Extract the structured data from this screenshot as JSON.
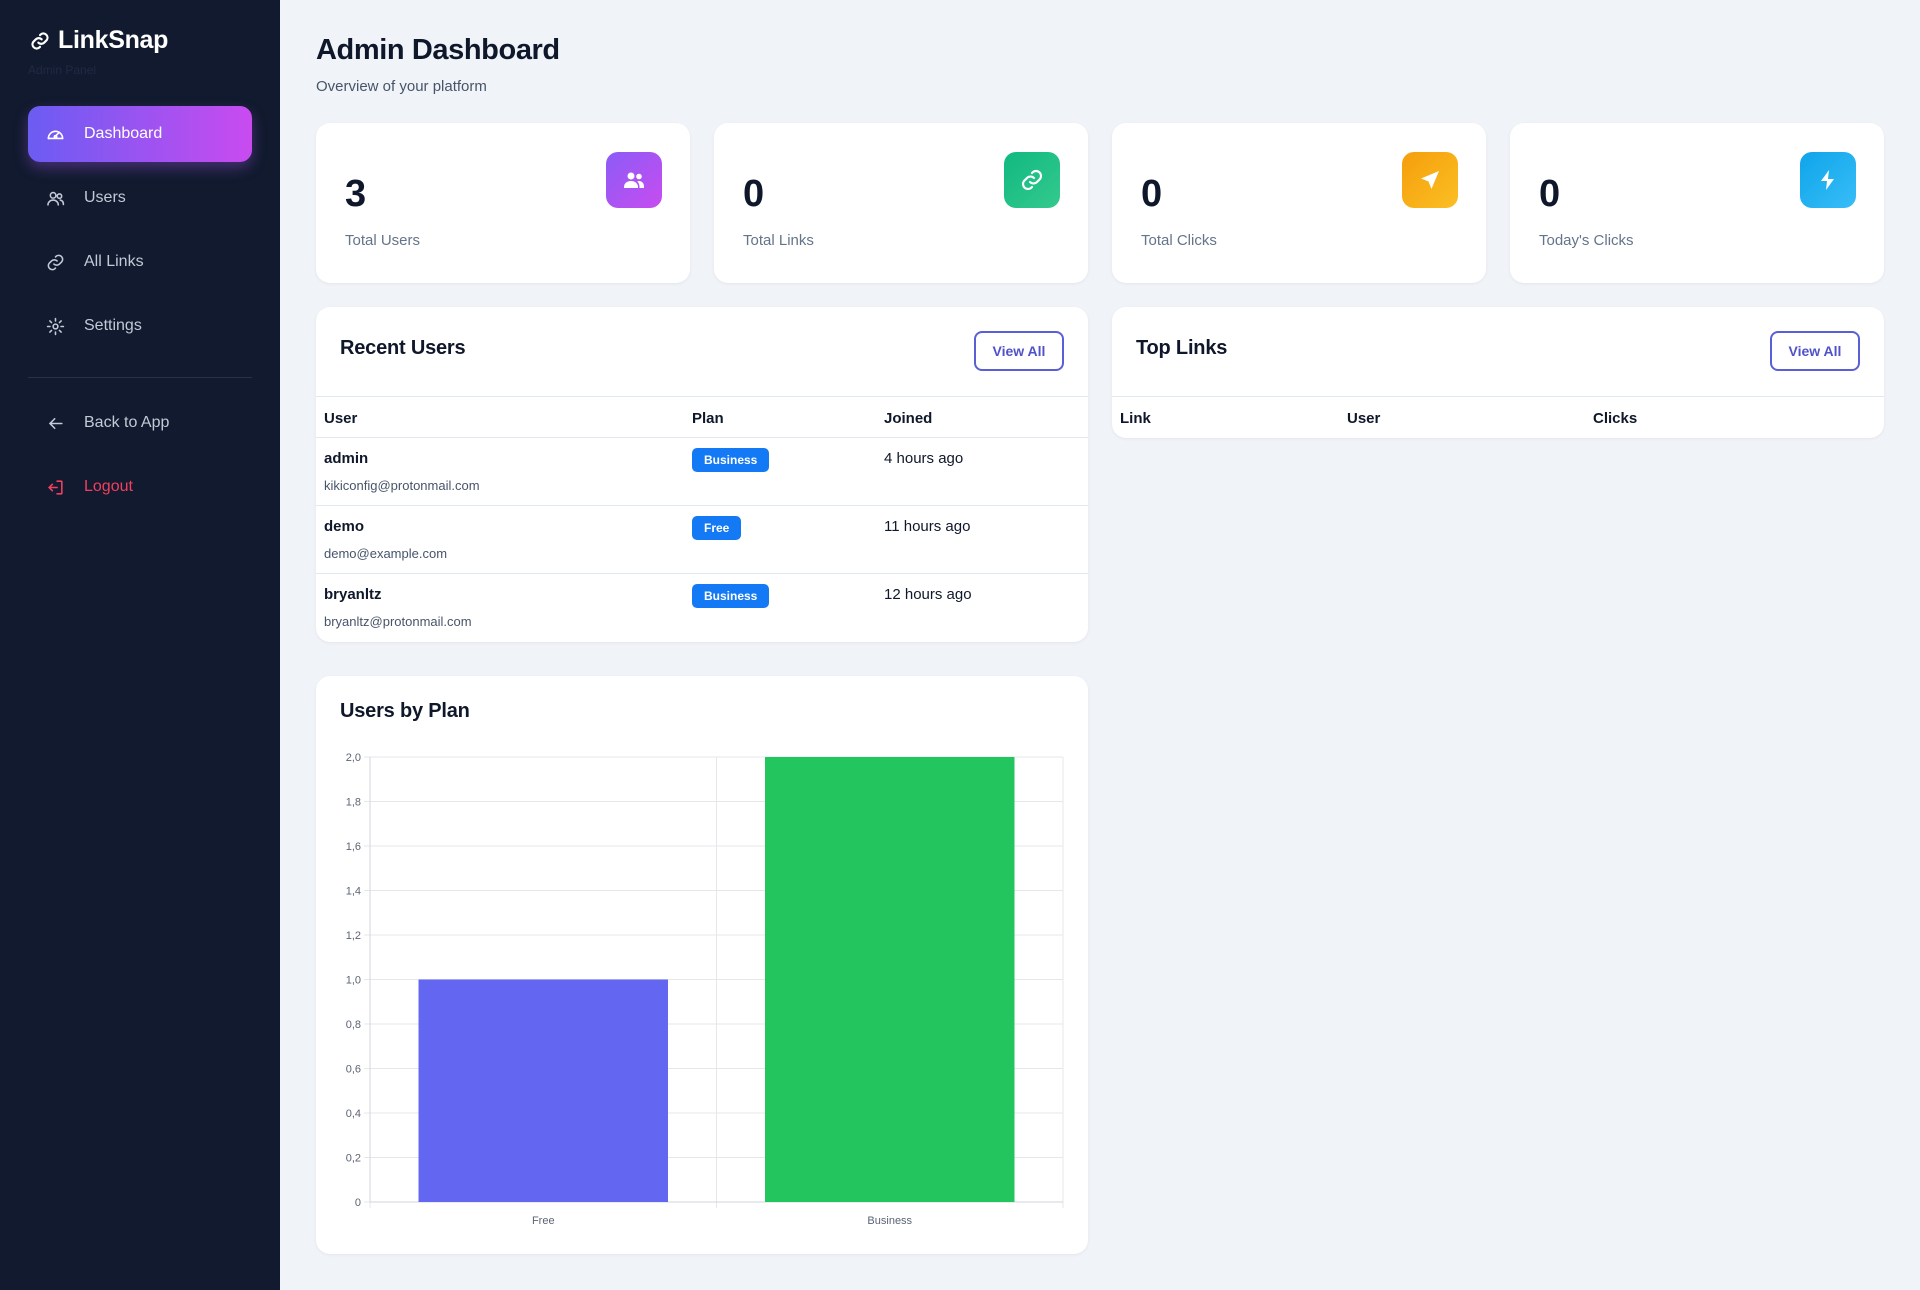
{
  "app": {
    "name": "LinkSnap",
    "subtitle": "Admin Panel"
  },
  "sidebar": {
    "items": [
      {
        "label": "Dashboard",
        "icon": "gauge-icon",
        "active": true
      },
      {
        "label": "Users",
        "icon": "users-icon"
      },
      {
        "label": "All Links",
        "icon": "link-icon"
      },
      {
        "label": "Settings",
        "icon": "gear-icon"
      }
    ],
    "back": {
      "label": "Back to App",
      "icon": "arrow-left-icon"
    },
    "logout": {
      "label": "Logout",
      "icon": "logout-icon"
    }
  },
  "header": {
    "title": "Admin Dashboard",
    "subtitle": "Overview of your platform"
  },
  "stats": [
    {
      "value": "3",
      "label": "Total Users",
      "icon": "users-icon",
      "color": "#a855f7"
    },
    {
      "value": "0",
      "label": "Total Links",
      "icon": "link-icon",
      "color": "#10b981"
    },
    {
      "value": "0",
      "label": "Total Clicks",
      "icon": "send-icon",
      "color": "#f59e0b"
    },
    {
      "value": "0",
      "label": "Today's Clicks",
      "icon": "bolt-icon",
      "color": "#0ea5e9"
    }
  ],
  "recent_users": {
    "title": "Recent Users",
    "view_all": "View All",
    "columns": [
      "User",
      "Plan",
      "Joined"
    ],
    "rows": [
      {
        "name": "admin",
        "email": "kikiconfig@protonmail.com",
        "plan": "Business",
        "joined": "4 hours ago"
      },
      {
        "name": "demo",
        "email": "demo@example.com",
        "plan": "Free",
        "joined": "11 hours ago"
      },
      {
        "name": "bryanltz",
        "email": "bryanltz@protonmail.com",
        "plan": "Business",
        "joined": "12 hours ago"
      }
    ]
  },
  "top_links": {
    "title": "Top Links",
    "view_all": "View All",
    "columns": [
      "Link",
      "User",
      "Clicks"
    ]
  },
  "users_by_plan": {
    "title": "Users by Plan"
  },
  "chart_data": {
    "type": "bar",
    "title": "Users by Plan",
    "categories": [
      "Free",
      "Business"
    ],
    "values": [
      1,
      2
    ],
    "colors": [
      "#6366f1",
      "#22c55e"
    ],
    "ylim": [
      0,
      2
    ],
    "yticks": [
      "0",
      "0,2",
      "0,4",
      "0,6",
      "0,8",
      "1,0",
      "1,2",
      "1,4",
      "1,6",
      "1,8",
      "2,0"
    ],
    "grid": true,
    "legend": "none"
  }
}
